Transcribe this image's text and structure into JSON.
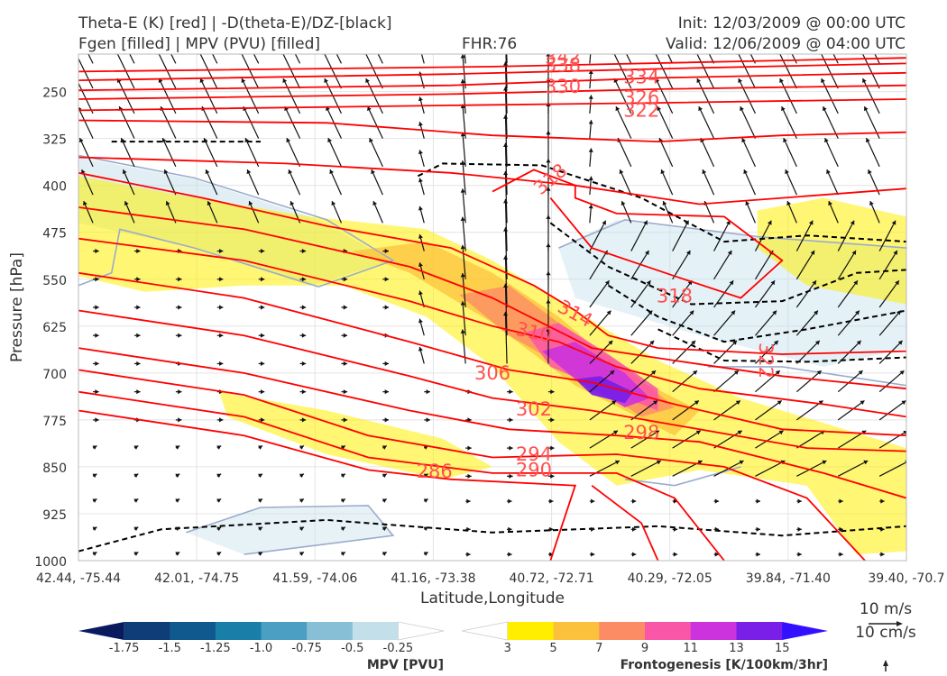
{
  "header": {
    "title_left_1": "Theta-E (K) [red] | -D(theta-E)/DZ-[black]",
    "title_left_2": "Fgen [filled] | MPV (PVU) [filled]",
    "fhr": "FHR:76",
    "init": "Init: 12/03/2009 @ 00:00 UTC",
    "valid": "Valid: 12/06/2009 @ 04:00 UTC"
  },
  "chart_data": {
    "type": "contour",
    "xlabel": "Latitude,Longitude",
    "ylabel": "Pressure [hPa]",
    "ylim": [
      1000,
      190
    ],
    "y_inverted": true,
    "grid": true,
    "x_ticks": [
      "42.44, -75.44",
      "42.01, -74.75",
      "41.59, -74.06",
      "41.16, -73.38",
      "40.72, -72.71",
      "40.29, -72.05",
      "39.84, -71.40",
      "39.40, -70.7"
    ],
    "y_ticks": [
      250,
      325,
      400,
      475,
      550,
      625,
      700,
      775,
      850,
      925,
      1000
    ],
    "theta_e": {
      "color": "#ff0000",
      "labels": [
        {
          "text": "342",
          "x": 0.585,
          "p": 195
        },
        {
          "text": "338",
          "x": 0.585,
          "p": 208
        },
        {
          "text": "334",
          "x": 0.68,
          "p": 227
        },
        {
          "text": "330",
          "x": 0.585,
          "p": 242
        },
        {
          "text": "326",
          "x": 0.68,
          "p": 260
        },
        {
          "text": "322",
          "x": 0.68,
          "p": 280
        },
        {
          "text": "318",
          "x": 0.57,
          "p": 390
        },
        {
          "text": "318",
          "x": 0.72,
          "p": 577
        },
        {
          "text": "322",
          "x": 0.83,
          "p": 680
        },
        {
          "text": "314",
          "x": 0.6,
          "p": 605
        },
        {
          "text": "310",
          "x": 0.55,
          "p": 635
        },
        {
          "text": "306",
          "x": 0.5,
          "p": 700
        },
        {
          "text": "302",
          "x": 0.55,
          "p": 758
        },
        {
          "text": "298",
          "x": 0.68,
          "p": 795
        },
        {
          "text": "294",
          "x": 0.55,
          "p": 830
        },
        {
          "text": "290",
          "x": 0.55,
          "p": 855
        },
        {
          "text": "286",
          "x": 0.43,
          "p": 857
        }
      ]
    },
    "ddz_theta_e": {
      "color": "#000000",
      "style": "dashed"
    },
    "mpv_colorbar": {
      "label": "MPV [PVU]",
      "ticks": [
        "-1.75",
        "-1.5",
        "-1.25",
        "-1.0",
        "-0.75",
        "-0.5",
        "-0.25"
      ],
      "colors": [
        "#0a1a5e",
        "#0e3d78",
        "#10598f",
        "#1a7fa8",
        "#4a9fc2",
        "#86bfd6",
        "#c3dfea",
        "#ffffff"
      ]
    },
    "fgen_colorbar": {
      "label": "Frontogenesis [K/100km/3hr]",
      "ticks": [
        "3",
        "5",
        "7",
        "9",
        "11",
        "13",
        "15"
      ],
      "colors": [
        "#ffffff",
        "#ffee00",
        "#fcc13c",
        "#fc8c64",
        "#fa56a8",
        "#cc33dd",
        "#7a1fe8",
        "#3311ff"
      ]
    },
    "wind_ref": {
      "label_1": "10 m/s",
      "label_2": "10 cm/s"
    }
  }
}
